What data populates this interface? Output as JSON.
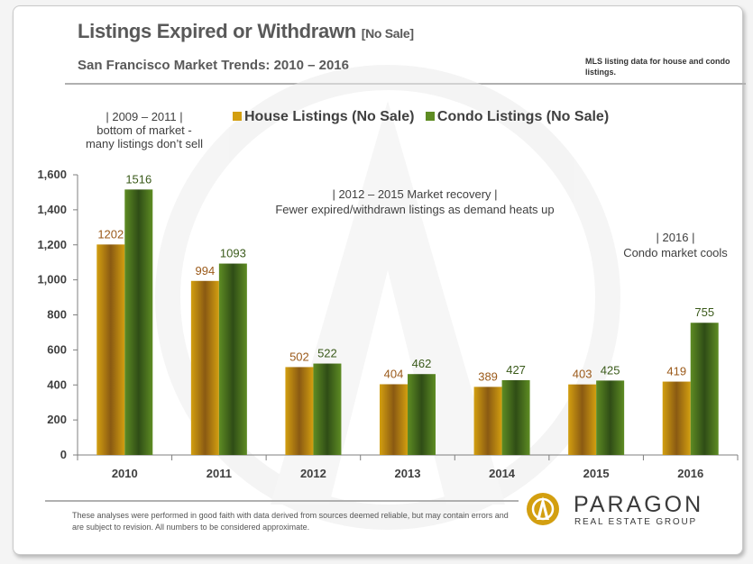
{
  "header": {
    "title": "Listings Expired or Withdrawn",
    "title_suffix": "[No Sale]",
    "subtitle": "San Francisco Market Trends: 2010 – 2016",
    "source_note": "MLS listing data for house and condo listings."
  },
  "annotations": {
    "bottom_line1": "| 2009 – 2011 |",
    "bottom_line2": "bottom of market -",
    "bottom_line3": "many listings don’t sell",
    "recovery_line1": "| 2012 – 2015 Market recovery |",
    "recovery_line2": "Fewer expired/withdrawn listings as demand heats up",
    "cools_line1": "| 2016 |",
    "cools_line2": "Condo market cools"
  },
  "footer": {
    "disclaimer": "These analyses were performed in good faith with data derived from sources deemed reliable, but may contain errors and are subject to revision. All numbers to be considered approximate.",
    "brand_name": "PARAGON",
    "brand_sub": "REAL ESTATE GROUP"
  },
  "colors": {
    "house": "#d39f10",
    "condo": "#5e8c23",
    "house_label": "#9b5a1a",
    "condo_label": "#3a5a1a"
  },
  "chart_data": {
    "type": "bar",
    "title": "Listings Expired or Withdrawn [No Sale]",
    "categories": [
      "2010",
      "2011",
      "2012",
      "2013",
      "2014",
      "2015",
      "2016"
    ],
    "series": [
      {
        "name": "House Listings (No Sale)",
        "values": [
          1202,
          994,
          502,
          404,
          389,
          403,
          419
        ]
      },
      {
        "name": "Condo Listings (No Sale)",
        "values": [
          1516,
          1093,
          522,
          462,
          427,
          425,
          755
        ]
      }
    ],
    "y_ticks": [
      "0",
      "200",
      "400",
      "600",
      "800",
      "1,000",
      "1,200",
      "1,400",
      "1,600"
    ],
    "ylim": [
      0,
      1600
    ],
    "xlabel": "",
    "ylabel": "",
    "legend_position": "top"
  }
}
